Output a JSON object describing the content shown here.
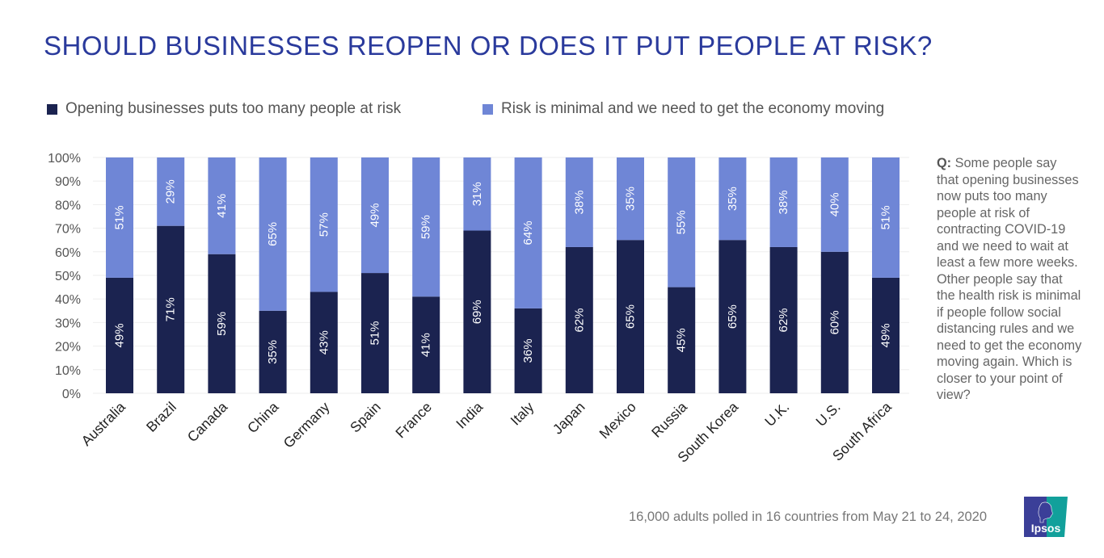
{
  "title": "SHOULD BUSINESSES REOPEN OR DOES IT PUT PEOPLE AT RISK?",
  "question_label": "Q:",
  "question_text": "Some people say that opening businesses now puts too many people at risk of contracting COVID-19 and we need to wait at least a few more weeks. Other people say that the health risk is minimal if people follow social distancing rules and we need to get the economy moving again. Which is closer to your point of view?",
  "footnote": "16,000 adults polled in 16 countries from May 21 to 24, 2020",
  "logo_text": "Ipsos",
  "colors": {
    "title": "#2a3a9c",
    "series1": "#1b2350",
    "series2": "#6f86d6",
    "logo_left": "#3b3f98",
    "logo_right": "#12a09b"
  },
  "chart_data": {
    "type": "bar",
    "stacked": true,
    "title": "SHOULD BUSINESSES REOPEN OR DOES IT PUT PEOPLE AT RISK?",
    "categories": [
      "Australia",
      "Brazil",
      "Canada",
      "China",
      "Germany",
      "Spain",
      "France",
      "India",
      "Italy",
      "Japan",
      "Mexico",
      "Russia",
      "South Korea",
      "U.K.",
      "U.S.",
      "South Africa"
    ],
    "series": [
      {
        "name": "Opening businesses puts too many people at risk",
        "values": [
          49,
          71,
          59,
          35,
          43,
          51,
          41,
          69,
          36,
          62,
          65,
          45,
          65,
          62,
          60,
          49
        ]
      },
      {
        "name": "Risk is minimal and we need to get the economy moving",
        "values": [
          51,
          29,
          41,
          65,
          57,
          49,
          59,
          31,
          64,
          38,
          35,
          55,
          35,
          38,
          40,
          51
        ]
      }
    ],
    "yticks": [
      "0%",
      "10%",
      "20%",
      "30%",
      "40%",
      "50%",
      "60%",
      "70%",
      "80%",
      "90%",
      "100%"
    ],
    "ylim": [
      0,
      100
    ],
    "grid": true,
    "legend": "top"
  }
}
